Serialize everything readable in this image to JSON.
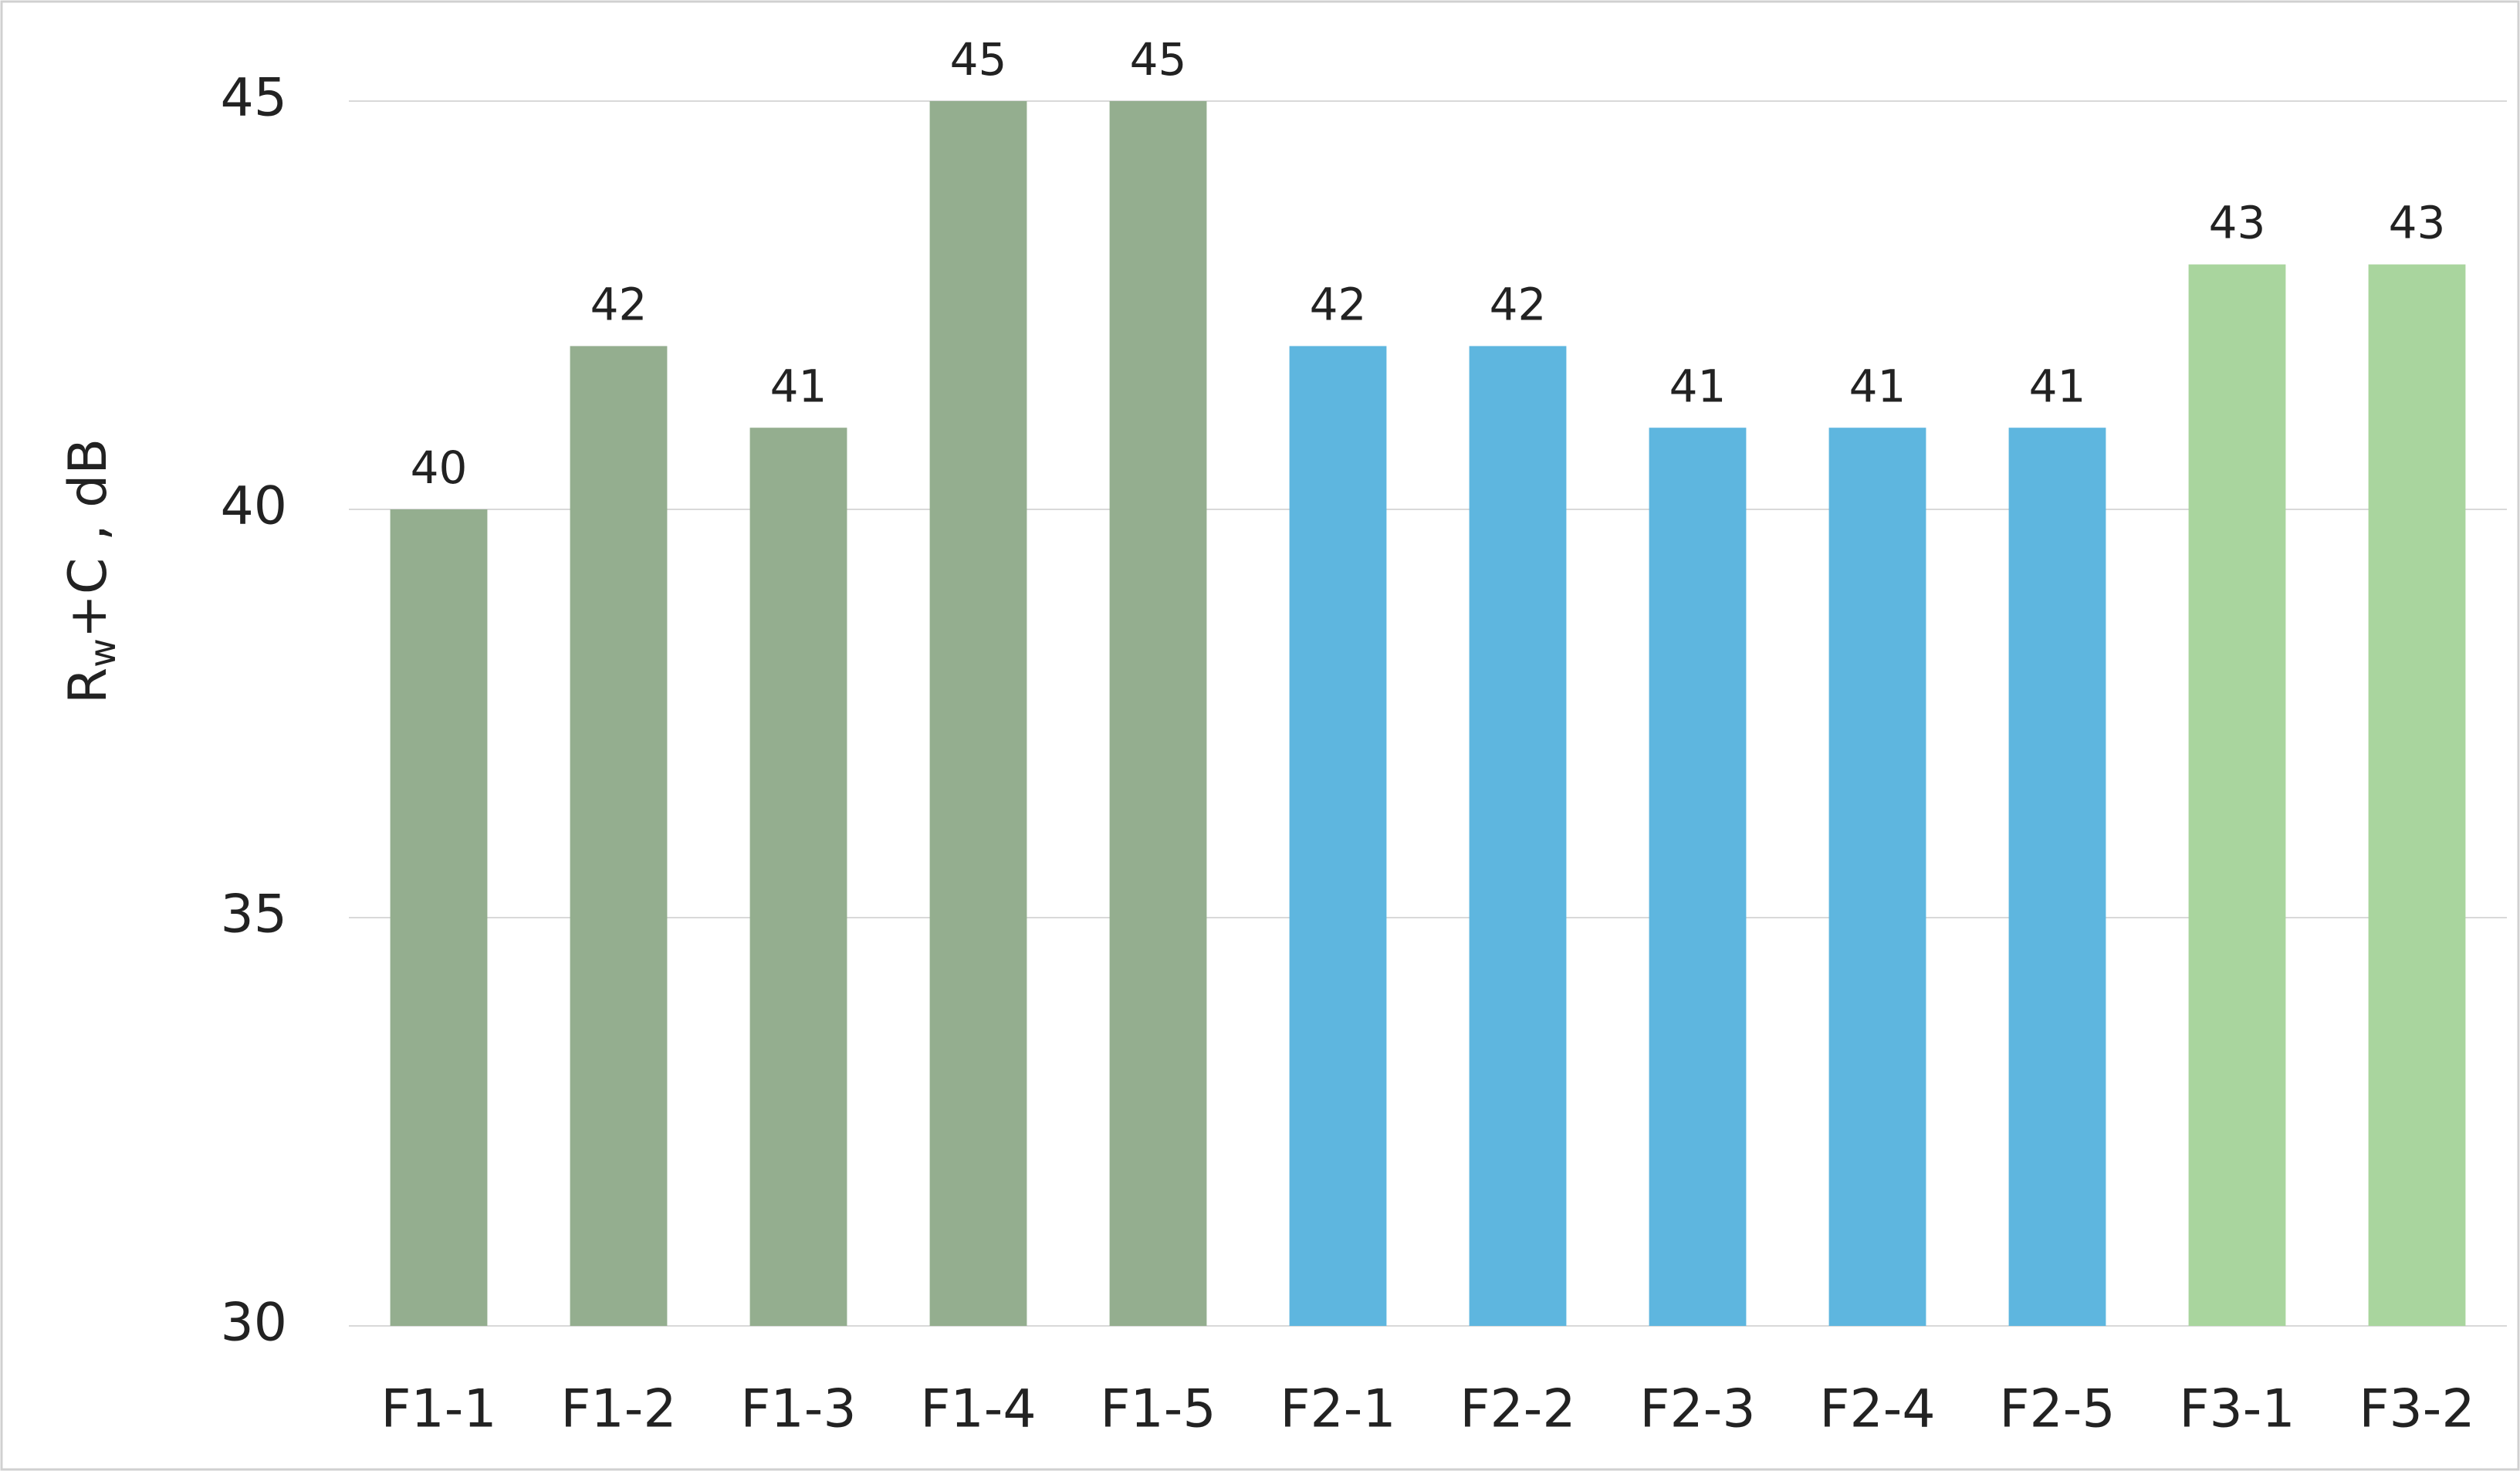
{
  "chart_data": {
    "type": "bar",
    "y_label": {
      "main": "R",
      "sub": "w",
      "rest": "+C , dB"
    },
    "categories": [
      "F1-1",
      "F1-2",
      "F1-3",
      "F1-4",
      "F1-5",
      "F2-1",
      "F2-2",
      "F2-3",
      "F2-4",
      "F2-5",
      "F3-1",
      "F3-2"
    ],
    "values": [
      40,
      42,
      41,
      45,
      45,
      42,
      42,
      41,
      41,
      41,
      43,
      43
    ],
    "colors": [
      "#94ae8f",
      "#94ae8f",
      "#94ae8f",
      "#94ae8f",
      "#94ae8f",
      "#5eb6df",
      "#5eb6df",
      "#5eb6df",
      "#5eb6df",
      "#5eb6df",
      "#a9d59e",
      "#a9d59e"
    ],
    "ylim": [
      30,
      45
    ],
    "yticks": [
      30,
      35,
      40,
      45
    ],
    "grid": true
  }
}
